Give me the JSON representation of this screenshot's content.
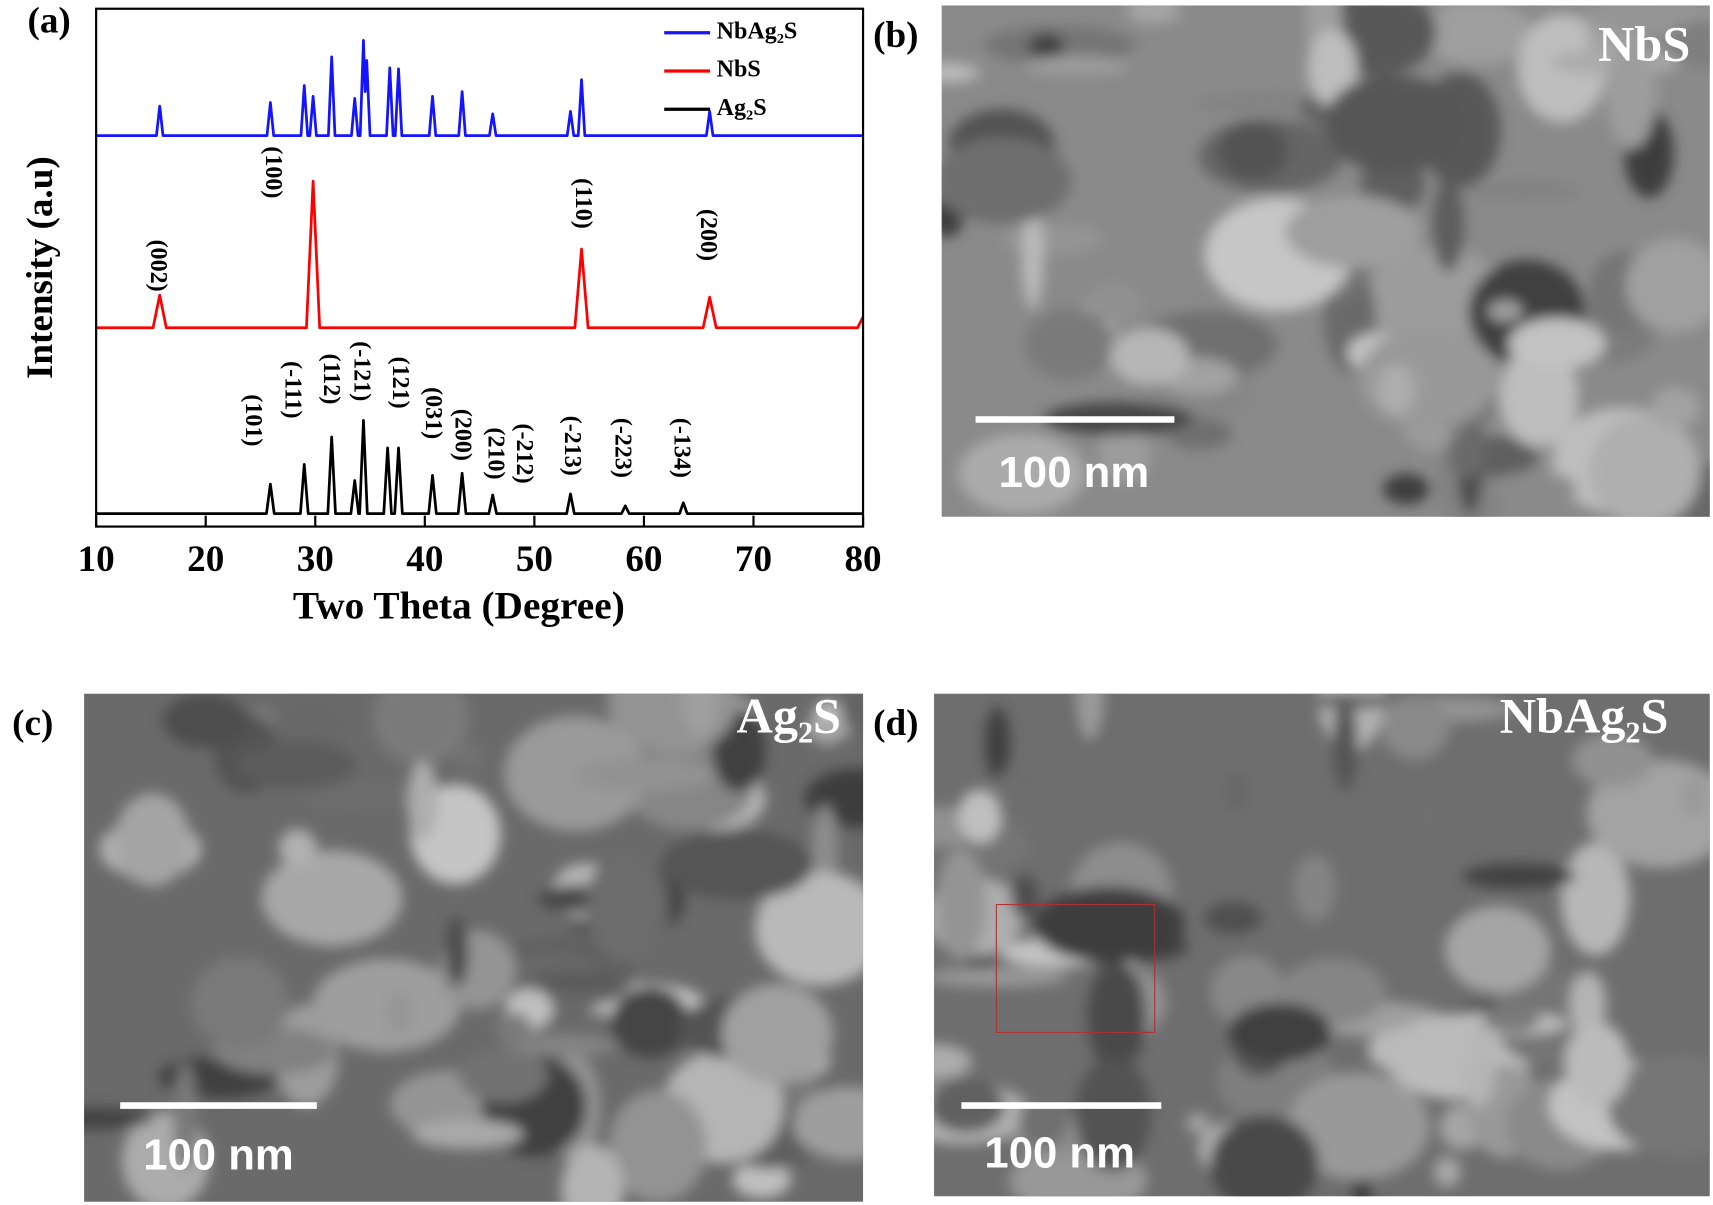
{
  "chart_data": {
    "type": "line",
    "panel_label": "(a)",
    "xlabel": "Two Theta (Degree)",
    "ylabel": "Intensity (a.u)",
    "xlim": [
      10,
      80
    ],
    "xticks": [
      10,
      20,
      30,
      40,
      50,
      60,
      70,
      80
    ],
    "ylim": [
      0,
      100
    ],
    "legend": "upper right",
    "series": [
      {
        "name": "NbAg₂S",
        "color": "#1414ff",
        "x": [
          10,
          15.5,
          15.8,
          16.1,
          25.6,
          25.9,
          26.2,
          28.7,
          29.0,
          29.3,
          29.5,
          29.8,
          30.1,
          31.2,
          31.5,
          31.8,
          33.3,
          33.6,
          33.9,
          34.1,
          34.4,
          34.55,
          34.7,
          35.0,
          36.5,
          36.8,
          37.1,
          37.3,
          37.6,
          37.9,
          40.4,
          40.7,
          41.0,
          43.1,
          43.4,
          43.7,
          45.9,
          46.2,
          46.5,
          53.0,
          53.3,
          53.6,
          54.0,
          54.3,
          54.6,
          65.7,
          66.0,
          66.3,
          80
        ],
        "values": [
          75.5,
          75.5,
          81.2,
          75.5,
          75.5,
          81.9,
          75.5,
          75.5,
          85.2,
          75.5,
          75.5,
          83.1,
          75.5,
          75.5,
          90.7,
          75.5,
          75.5,
          82.7,
          75.5,
          75.5,
          93.9,
          84,
          90,
          75.5,
          75.5,
          88.6,
          75.5,
          75.5,
          88.4,
          75.5,
          75.5,
          83.1,
          75.5,
          75.5,
          84,
          75.5,
          75.5,
          79.7,
          75.5,
          75.5,
          80.2,
          75.5,
          75.5,
          86.3,
          75.5,
          75.5,
          80.2,
          75.5,
          75.5
        ]
      },
      {
        "name": "NbS",
        "color": "#ff0000",
        "x": [
          10,
          15.2,
          15.8,
          16.4,
          29.2,
          29.8,
          30.4,
          53.7,
          54.3,
          54.9,
          65.4,
          66.0,
          66.6,
          79.5,
          80
        ],
        "values": [
          38.4,
          38.4,
          44.7,
          38.4,
          38.4,
          66.7,
          38.4,
          38.4,
          53.6,
          38.4,
          38.4,
          44.3,
          38.4,
          38.4,
          40.5
        ]
      },
      {
        "name": "Ag₂S",
        "color": "#000000",
        "x": [
          10,
          25.55,
          25.9,
          26.25,
          28.65,
          29.0,
          29.35,
          31.15,
          31.5,
          31.85,
          33.25,
          33.6,
          33.95,
          34.05,
          34.4,
          34.75,
          36.25,
          36.6,
          36.95,
          37.25,
          37.6,
          37.95,
          40.35,
          40.7,
          41.05,
          43.05,
          43.4,
          43.75,
          45.85,
          46.2,
          46.55,
          52.95,
          53.3,
          53.65,
          57.95,
          58.3,
          58.65,
          63.25,
          63.6,
          63.95,
          80
        ],
        "values": [
          2.5,
          2.5,
          8.2,
          2.5,
          2.5,
          12,
          2.5,
          2.5,
          17.3,
          2.5,
          2.5,
          8.9,
          2.5,
          2.5,
          20.5,
          2.5,
          2.5,
          15.2,
          2.5,
          2.5,
          15.2,
          2.5,
          2.5,
          9.9,
          2.5,
          2.5,
          10.3,
          2.5,
          2.5,
          6.1,
          2.5,
          2.5,
          6.3,
          2.5,
          2.5,
          4,
          2.5,
          2.5,
          4.6,
          2.5,
          2.5
        ]
      }
    ],
    "annotations": [
      {
        "text": "(002)",
        "x": 15.5,
        "y": 50.4
      },
      {
        "text": "(100)",
        "x": 26,
        "y": 68.4
      },
      {
        "text": "(110)",
        "x": 54.3,
        "y": 62.4
      },
      {
        "text": "(200)",
        "x": 65.7,
        "y": 56.3
      },
      {
        "text": "(101)",
        "x": 24.2,
        "y": 20.5
      },
      {
        "text": "(-111)",
        "x": 27.8,
        "y": 26.4
      },
      {
        "text": "(112)",
        "x": 31.3,
        "y": 28.5
      },
      {
        "text": "(-121)",
        "x": 34.1,
        "y": 30
      },
      {
        "text": "(121)",
        "x": 37.6,
        "y": 27.8
      },
      {
        "text": "(031)",
        "x": 40.6,
        "y": 21.9
      },
      {
        "text": "(200)",
        "x": 43.3,
        "y": 17.7
      },
      {
        "text": "(210)",
        "x": 46.3,
        "y": 14.1
      },
      {
        "text": "(-212)",
        "x": 48.9,
        "y": 14.1
      },
      {
        "text": "(-213)",
        "x": 53.3,
        "y": 15.6
      },
      {
        "text": "(-223)",
        "x": 57.9,
        "y": 15.2
      },
      {
        "text": "(-134)",
        "x": 63.3,
        "y": 15.2
      }
    ]
  },
  "panels": [
    {
      "label": "(b)",
      "caption": "NbS",
      "scale_bar": "100 nm"
    },
    {
      "label": "(c)",
      "caption": "Ag₂S",
      "scale_bar": "100 nm"
    },
    {
      "label": "(d)",
      "caption": "NbAg₂S",
      "scale_bar": "100 nm"
    }
  ]
}
